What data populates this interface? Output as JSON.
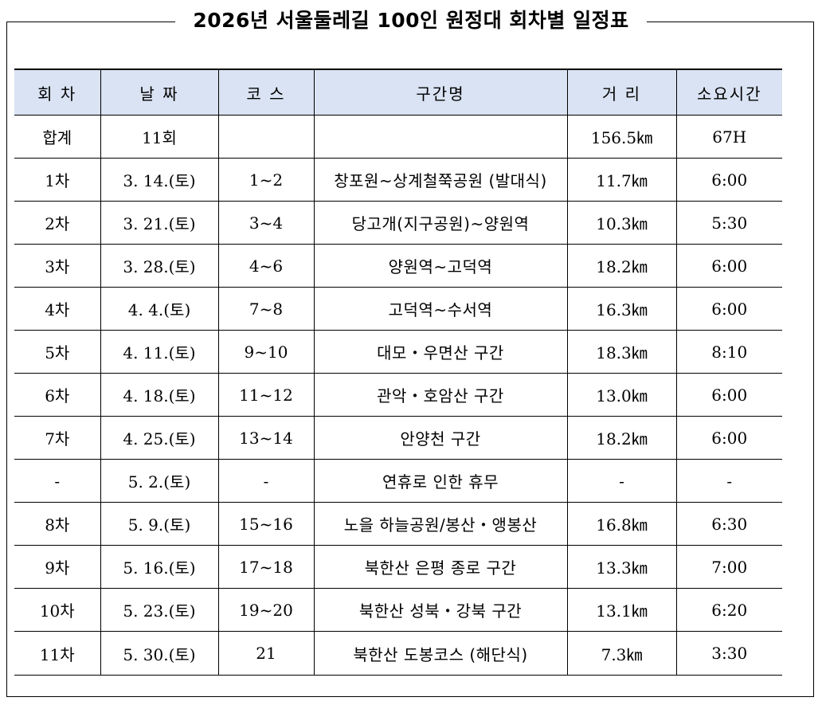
{
  "title": "2026년 서울둘레길 100인 원정대 회차별 일정표",
  "headers": {
    "round": "회 차",
    "date": "날 짜",
    "course": "코 스",
    "route": "구간명",
    "distance": "거 리",
    "time": "소요시간"
  },
  "rows": [
    {
      "round": "합계",
      "date": "11회",
      "course": "",
      "route": "",
      "distance": "156.5㎞",
      "time": "67H"
    },
    {
      "round": "1차",
      "date": "3. 14.(토)",
      "course": "1~2",
      "route": "창포원~상계철쭉공원 (발대식)",
      "distance": "11.7㎞",
      "time": "6:00"
    },
    {
      "round": "2차",
      "date": "3. 21.(토)",
      "course": "3~4",
      "route": "당고개(지구공원)~양원역",
      "distance": "10.3㎞",
      "time": "5:30"
    },
    {
      "round": "3차",
      "date": "3. 28.(토)",
      "course": "4~6",
      "route": "양원역~고덕역",
      "distance": "18.2㎞",
      "time": "6:00"
    },
    {
      "round": "4차",
      "date": "4. 4.(토)",
      "course": "7~8",
      "route": "고덕역~수서역",
      "distance": "16.3㎞",
      "time": "6:00"
    },
    {
      "round": "5차",
      "date": "4. 11.(토)",
      "course": "9~10",
      "route": "대모・우면산 구간",
      "distance": "18.3㎞",
      "time": "8:10"
    },
    {
      "round": "6차",
      "date": "4. 18.(토)",
      "course": "11~12",
      "route": "관악・호암산 구간",
      "distance": "13.0㎞",
      "time": "6:00"
    },
    {
      "round": "7차",
      "date": "4. 25.(토)",
      "course": "13~14",
      "route": "안양천 구간",
      "distance": "18.2㎞",
      "time": "6:00"
    },
    {
      "round": "-",
      "date": "5. 2.(토)",
      "course": "-",
      "route": "연휴로 인한 휴무",
      "distance": "-",
      "time": "-"
    },
    {
      "round": "8차",
      "date": "5. 9.(토)",
      "course": "15~16",
      "route": "노을 하늘공원/봉산・앵봉산",
      "distance": "16.8㎞",
      "time": "6:30"
    },
    {
      "round": "9차",
      "date": "5. 16.(토)",
      "course": "17~18",
      "route": "북한산 은평 종로 구간",
      "distance": "13.3㎞",
      "time": "7:00"
    },
    {
      "round": "10차",
      "date": "5. 23.(토)",
      "course": "19~20",
      "route": "북한산 성북・강북 구간",
      "distance": "13.1㎞",
      "time": "6:20"
    },
    {
      "round": "11차",
      "date": "5. 30.(토)",
      "course": "21",
      "route": "북한산 도봉코스 (해단식)",
      "distance": "7.3㎞",
      "time": "3:30"
    }
  ],
  "colors": {
    "header_bg": "#dae3f3"
  }
}
